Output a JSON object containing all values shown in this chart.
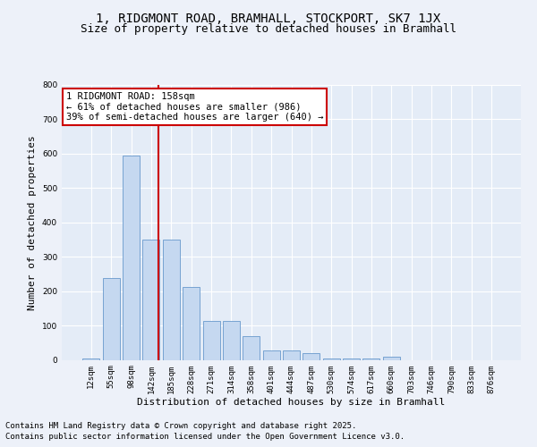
{
  "title_line1": "1, RIDGMONT ROAD, BRAMHALL, STOCKPORT, SK7 1JX",
  "title_line2": "Size of property relative to detached houses in Bramhall",
  "xlabel": "Distribution of detached houses by size in Bramhall",
  "ylabel": "Number of detached properties",
  "categories": [
    "12sqm",
    "55sqm",
    "98sqm",
    "142sqm",
    "185sqm",
    "228sqm",
    "271sqm",
    "314sqm",
    "358sqm",
    "401sqm",
    "444sqm",
    "487sqm",
    "530sqm",
    "574sqm",
    "617sqm",
    "660sqm",
    "703sqm",
    "746sqm",
    "790sqm",
    "833sqm",
    "876sqm"
  ],
  "values": [
    5,
    238,
    595,
    350,
    350,
    212,
    112,
    112,
    70,
    28,
    28,
    20,
    5,
    5,
    5,
    8,
    0,
    0,
    0,
    0,
    0
  ],
  "bar_color": "#c5d8f0",
  "bar_edge_color": "#6899cc",
  "ylim": [
    0,
    800
  ],
  "yticks": [
    0,
    100,
    200,
    300,
    400,
    500,
    600,
    700,
    800
  ],
  "vline_x": 3.35,
  "annotation_text": "1 RIDGMONT ROAD: 158sqm\n← 61% of detached houses are smaller (986)\n39% of semi-detached houses are larger (640) →",
  "annotation_box_color": "#ffffff",
  "annotation_box_edge": "#cc0000",
  "vline_color": "#cc0000",
  "footer_line1": "Contains HM Land Registry data © Crown copyright and database right 2025.",
  "footer_line2": "Contains public sector information licensed under the Open Government Licence v3.0.",
  "background_color": "#edf1f9",
  "plot_bg_color": "#e4ecf7",
  "grid_color": "#ffffff",
  "title_fontsize": 10,
  "subtitle_fontsize": 9,
  "axis_label_fontsize": 8,
  "tick_fontsize": 6.5,
  "annotation_fontsize": 7.5,
  "footer_fontsize": 6.5
}
